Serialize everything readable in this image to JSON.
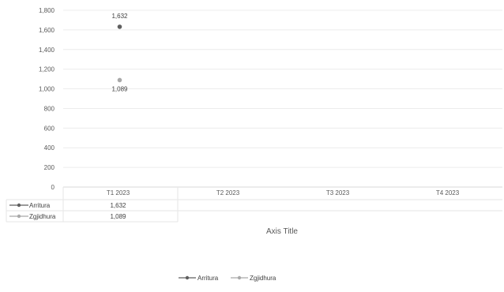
{
  "chart_data": {
    "type": "line",
    "categories": [
      "T1 2023",
      "T2 2023",
      "T3 2023",
      "T4 2023"
    ],
    "series": [
      {
        "name": "Arritura",
        "values": [
          1632,
          null,
          null,
          null
        ],
        "color": "#5f5f5f",
        "data_label": "1,632"
      },
      {
        "name": "Zgjidhura",
        "values": [
          1089,
          null,
          null,
          null
        ],
        "color": "#a9a9a9",
        "data_label": "1,089"
      }
    ],
    "y_ticks": [
      "0",
      "200",
      "400",
      "600",
      "800",
      "1,000",
      "1,200",
      "1,400",
      "1,600",
      "1,800"
    ],
    "ylim": [
      0,
      1800
    ],
    "xlabel": "Axis Title",
    "grid": true,
    "legend": {
      "placement": "bottom-center",
      "items": [
        "Arritura",
        "Zgjidhura"
      ]
    },
    "data_table": {
      "rows": [
        {
          "label": "Arritura",
          "cells": [
            "1,632",
            "",
            "",
            ""
          ]
        },
        {
          "label": "Zgjidhura",
          "cells": [
            "1,089",
            "",
            "",
            ""
          ]
        }
      ]
    }
  }
}
